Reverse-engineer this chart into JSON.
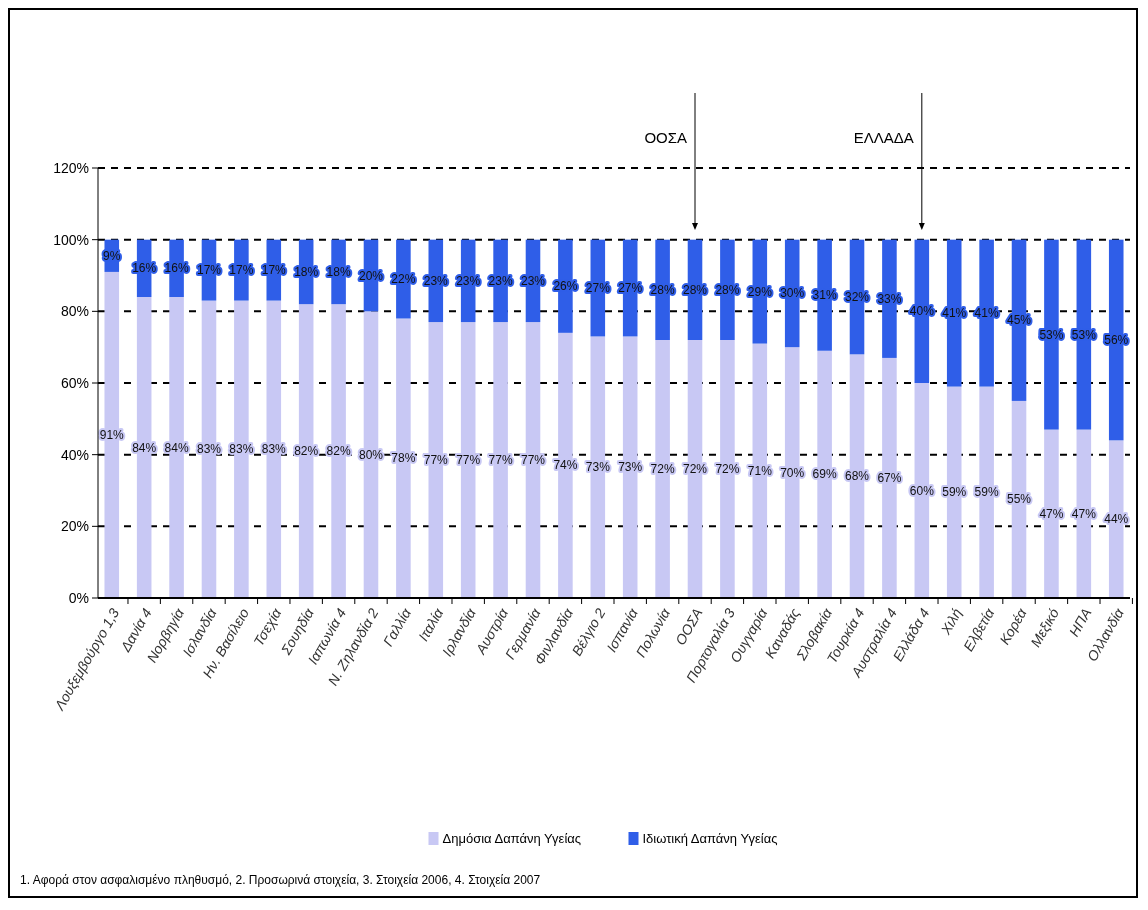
{
  "chart_data": {
    "type": "bar",
    "stacked": true,
    "categories": [
      "Λουξεμβούργο 1,3",
      "Δανία 4",
      "Νορβηγία",
      "Ισλανδία",
      "Ην. Βασίλειο",
      "Τσεχία",
      "Σουηδία",
      "Ιαπωνία 4",
      "Ν. Ζηλανδία 2",
      "Γαλλία",
      "Ιταλία",
      "Ιρλανδία",
      "Αυστρία",
      "Γερμανία",
      "Φινλανδία",
      "Βέλγιο 2",
      "Ισπανία",
      "Πολωνία",
      "ΟΟΣΑ",
      "Πορτογαλία 3",
      "Ουγγαρία",
      "Καναδάς",
      "Σλοβακία",
      "Τουρκία 4",
      "Αυστραλία 4",
      "Ελλάδα 4",
      "Χιλή",
      "Ελβετία",
      "Κορέα",
      "Μεξικό",
      "ΗΠΑ",
      "Ολλανδία"
    ],
    "series": [
      {
        "name": "Δημόσια Δαπάνη Υγείας",
        "color": "#c8c8f4",
        "values": [
          91,
          84,
          84,
          83,
          83,
          83,
          82,
          82,
          80,
          78,
          77,
          77,
          77,
          77,
          74,
          73,
          73,
          72,
          72,
          72,
          71,
          70,
          69,
          68,
          67,
          60,
          59,
          59,
          55,
          47,
          47,
          44
        ],
        "value_labels": [
          "91%",
          "84%",
          "84%",
          "83%",
          "83%",
          "83%",
          "82%",
          "82%",
          "80%",
          "78%",
          "77%",
          "77%",
          "77%",
          "77%",
          "74%",
          "73%",
          "73%",
          "72%",
          "72%",
          "72%",
          "71%",
          "70%",
          "69%",
          "68%",
          "67%",
          "60%",
          "59%",
          "59%",
          "55%",
          "47%",
          "47%",
          "44%"
        ]
      },
      {
        "name": "Ιδιωτική Δαπάνη Υγείας",
        "color": "#2f5ee8",
        "values": [
          9,
          16,
          16,
          17,
          17,
          17,
          18,
          18,
          20,
          22,
          23,
          23,
          23,
          23,
          26,
          27,
          27,
          28,
          28,
          28,
          29,
          30,
          31,
          32,
          33,
          40,
          41,
          41,
          45,
          53,
          53,
          56
        ],
        "value_labels": [
          "9%",
          "16%",
          "16%",
          "17%",
          "17%",
          "17%",
          "18%",
          "18%",
          "20%",
          "22%",
          "23%",
          "23%",
          "23%",
          "23%",
          "26%",
          "27%",
          "27%",
          "28%",
          "28%",
          "28%",
          "29%",
          "30%",
          "31%",
          "32%",
          "33%",
          "40%",
          "41%",
          "41%",
          "45%",
          "53%",
          "53%",
          "56%"
        ]
      }
    ],
    "ylim": [
      0,
      120
    ],
    "yticks": [
      {
        "value": 0,
        "label": "0%"
      },
      {
        "value": 20,
        "label": "20%"
      },
      {
        "value": 40,
        "label": "40%"
      },
      {
        "value": 60,
        "label": "60%"
      },
      {
        "value": 80,
        "label": "80%"
      },
      {
        "value": 100,
        "label": "100%"
      },
      {
        "value": 120,
        "label": "120%"
      }
    ],
    "grid": "y",
    "line_style": "dashed",
    "legend": "bottom",
    "annotations": [
      "ΟΟΣΑ",
      "ΕΛΛΑΔΑ",
      "1. Αφορά στον ασφαλισμένο πληθυσμό, 2. Προσωρινά στοιχεία, 3. Στοιχεία 2006, 4. Στοιχεία 2007"
    ]
  }
}
